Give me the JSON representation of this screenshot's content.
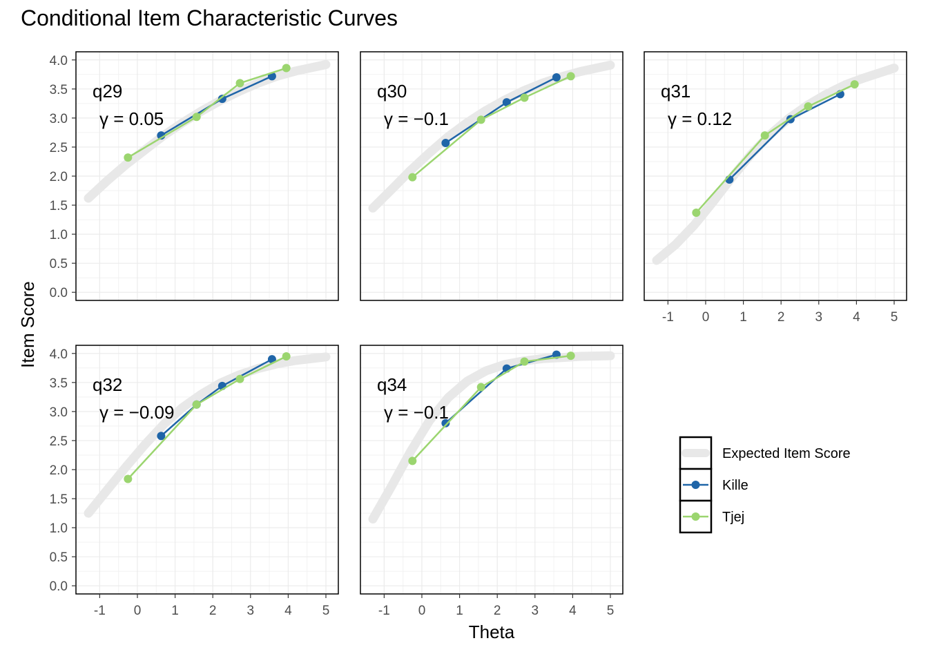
{
  "chart_data": {
    "type": "line",
    "title": "Conditional Item Characteristic Curves",
    "xlabel": "Theta",
    "ylabel": "Item Score",
    "xlim": [
      -1.3,
      5.0
    ],
    "ylim": [
      0.0,
      4.0
    ],
    "x_ticks": [
      "-1",
      "0",
      "1",
      "2",
      "3",
      "4",
      "5"
    ],
    "y_ticks": [
      "0.0",
      "0.5",
      "1.0",
      "1.5",
      "2.0",
      "2.5",
      "3.0",
      "3.5",
      "4.0"
    ],
    "grid": true,
    "legend_position": "right",
    "legend": [
      {
        "name": "Expected Item Score",
        "color": "#e8e8e8"
      },
      {
        "name": "Kille",
        "color": "#1f65a8"
      },
      {
        "name": "Tjej",
        "color": "#9bd56f"
      }
    ],
    "panels": [
      {
        "item": "q29",
        "gamma": "γ = 0.05",
        "expected": [
          [
            -1.3,
            1.62
          ],
          [
            -0.8,
            1.92
          ],
          [
            -0.3,
            2.2
          ],
          [
            0.2,
            2.45
          ],
          [
            0.7,
            2.7
          ],
          [
            1.2,
            2.92
          ],
          [
            1.7,
            3.12
          ],
          [
            2.2,
            3.3
          ],
          [
            2.7,
            3.46
          ],
          [
            3.2,
            3.6
          ],
          [
            3.7,
            3.72
          ],
          [
            4.2,
            3.81
          ],
          [
            5.0,
            3.92
          ]
        ],
        "series": [
          {
            "name": "Kille",
            "points": [
              [
                0.63,
                2.7
              ],
              [
                2.25,
                3.33
              ],
              [
                3.57,
                3.72
              ]
            ]
          },
          {
            "name": "Tjej",
            "points": [
              [
                -0.25,
                2.32
              ],
              [
                1.57,
                3.02
              ],
              [
                2.72,
                3.6
              ],
              [
                3.95,
                3.86
              ]
            ]
          }
        ]
      },
      {
        "item": "q30",
        "gamma": "γ = −0.1",
        "expected": [
          [
            -1.3,
            1.45
          ],
          [
            -0.8,
            1.77
          ],
          [
            -0.3,
            2.1
          ],
          [
            0.2,
            2.4
          ],
          [
            0.7,
            2.68
          ],
          [
            1.2,
            2.92
          ],
          [
            1.7,
            3.13
          ],
          [
            2.2,
            3.31
          ],
          [
            2.7,
            3.47
          ],
          [
            3.2,
            3.6
          ],
          [
            3.7,
            3.71
          ],
          [
            4.2,
            3.8
          ],
          [
            5.0,
            3.91
          ]
        ],
        "series": [
          {
            "name": "Kille",
            "points": [
              [
                0.63,
                2.57
              ],
              [
                2.25,
                3.27
              ],
              [
                3.57,
                3.7
              ]
            ]
          },
          {
            "name": "Tjej",
            "points": [
              [
                -0.25,
                1.98
              ],
              [
                1.57,
                2.97
              ],
              [
                2.72,
                3.35
              ],
              [
                3.95,
                3.72
              ]
            ]
          }
        ]
      },
      {
        "item": "q31",
        "gamma": "γ = 0.12",
        "expected": [
          [
            -1.3,
            0.55
          ],
          [
            -0.8,
            0.82
          ],
          [
            -0.3,
            1.16
          ],
          [
            0.2,
            1.56
          ],
          [
            0.7,
            1.98
          ],
          [
            1.2,
            2.37
          ],
          [
            1.7,
            2.71
          ],
          [
            2.2,
            2.99
          ],
          [
            2.7,
            3.22
          ],
          [
            3.2,
            3.41
          ],
          [
            3.7,
            3.57
          ],
          [
            4.2,
            3.69
          ],
          [
            5.0,
            3.86
          ]
        ],
        "series": [
          {
            "name": "Kille",
            "points": [
              [
                0.63,
                1.94
              ],
              [
                2.25,
                2.98
              ],
              [
                3.57,
                3.41
              ]
            ]
          },
          {
            "name": "Tjej",
            "points": [
              [
                -0.25,
                1.37
              ],
              [
                1.57,
                2.7
              ],
              [
                2.72,
                3.2
              ],
              [
                3.95,
                3.58
              ]
            ]
          }
        ]
      },
      {
        "item": "q32",
        "gamma": "γ = −0.09",
        "expected": [
          [
            -1.3,
            1.25
          ],
          [
            -0.8,
            1.65
          ],
          [
            -0.3,
            2.05
          ],
          [
            0.2,
            2.43
          ],
          [
            0.7,
            2.78
          ],
          [
            1.2,
            3.07
          ],
          [
            1.7,
            3.3
          ],
          [
            2.2,
            3.49
          ],
          [
            2.7,
            3.63
          ],
          [
            3.2,
            3.74
          ],
          [
            3.7,
            3.82
          ],
          [
            4.2,
            3.88
          ],
          [
            5.0,
            3.94
          ]
        ],
        "series": [
          {
            "name": "Kille",
            "points": [
              [
                0.63,
                2.58
              ],
              [
                1.57,
                3.12
              ],
              [
                2.25,
                3.44
              ],
              [
                3.57,
                3.9
              ]
            ]
          },
          {
            "name": "Tjej",
            "points": [
              [
                -0.25,
                1.84
              ],
              [
                1.57,
                3.12
              ],
              [
                2.72,
                3.56
              ],
              [
                3.95,
                3.95
              ]
            ]
          }
        ]
      },
      {
        "item": "q34",
        "gamma": "γ = −0.1",
        "expected": [
          [
            -1.3,
            1.15
          ],
          [
            -0.8,
            1.72
          ],
          [
            -0.3,
            2.31
          ],
          [
            0.2,
            2.84
          ],
          [
            0.7,
            3.24
          ],
          [
            1.2,
            3.52
          ],
          [
            1.7,
            3.7
          ],
          [
            2.2,
            3.81
          ],
          [
            2.7,
            3.87
          ],
          [
            3.2,
            3.91
          ],
          [
            3.7,
            3.93
          ],
          [
            4.2,
            3.95
          ],
          [
            5.0,
            3.96
          ]
        ],
        "series": [
          {
            "name": "Kille",
            "points": [
              [
                0.63,
                2.8
              ],
              [
                2.25,
                3.74
              ],
              [
                3.57,
                3.98
              ]
            ]
          },
          {
            "name": "Tjej",
            "points": [
              [
                -0.25,
                2.15
              ],
              [
                1.57,
                3.42
              ],
              [
                2.72,
                3.86
              ],
              [
                3.95,
                3.96
              ]
            ]
          }
        ]
      }
    ]
  }
}
